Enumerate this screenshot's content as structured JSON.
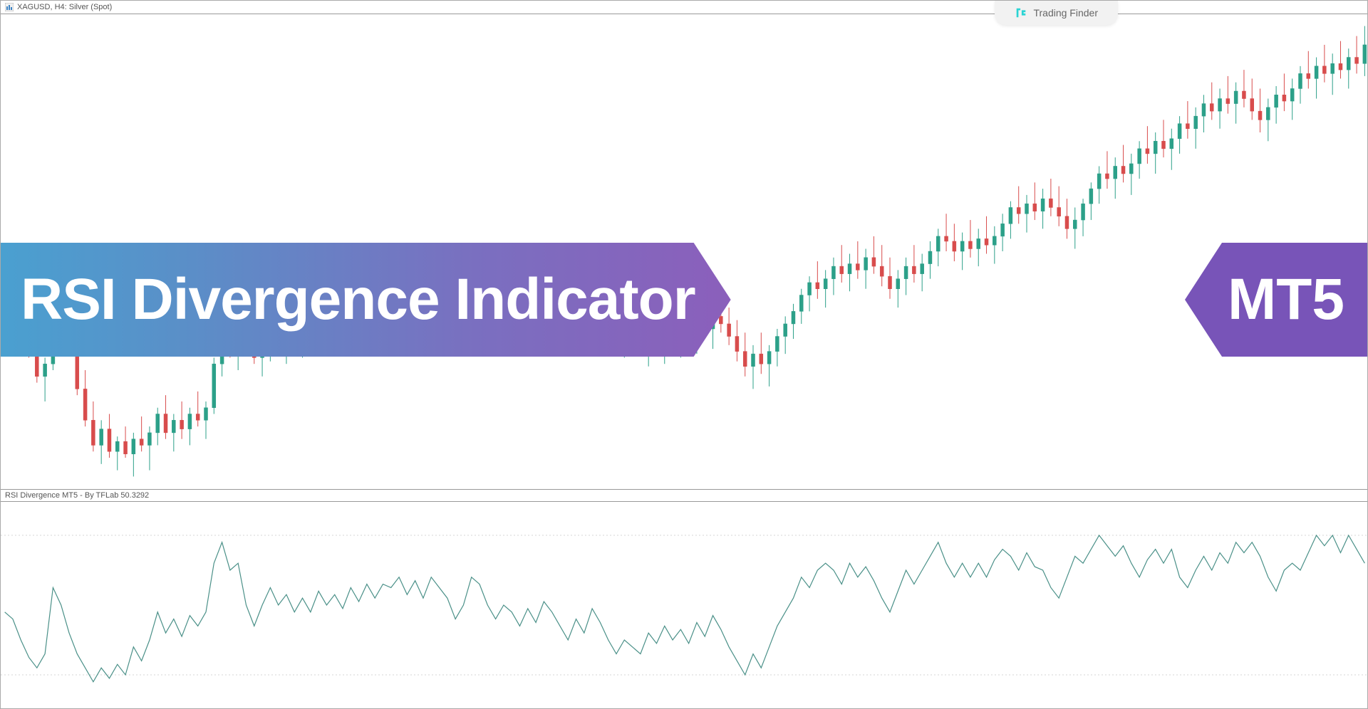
{
  "header": {
    "symbol_label": "XAGUSD, H4: Silver (Spot)",
    "icon_fill": "#3b82c4",
    "icon_stroke": "#2a5f8f"
  },
  "brand": {
    "name": "Trading Finder",
    "icon_color": "#2ad4d4",
    "bg": "#f2f2f2",
    "text_color": "#666666"
  },
  "title_banner": {
    "text": "RSI Divergence Indicator",
    "gradient_start": "#4aa0d0",
    "gradient_end": "#8b5fbb",
    "font_size": 82,
    "font_weight": 700,
    "text_color": "#ffffff"
  },
  "mt5_badge": {
    "text": "MT5",
    "bg": "#7854b8",
    "font_size": 82,
    "font_weight": 700,
    "text_color": "#ffffff"
  },
  "price_chart": {
    "type": "candlestick",
    "bull_color": "#2ca089",
    "bear_color": "#d84c4c",
    "wick_color_bull": "#2ca089",
    "wick_color_bear": "#d84c4c",
    "background": "#ffffff",
    "candle_width": 5,
    "ylim": [
      21.8,
      25.6
    ],
    "data": [
      {
        "o": 23.48,
        "h": 23.58,
        "l": 23.3,
        "c": 23.35
      },
      {
        "o": 23.35,
        "h": 23.52,
        "l": 23.28,
        "c": 23.45
      },
      {
        "o": 23.45,
        "h": 23.5,
        "l": 23.05,
        "c": 23.12
      },
      {
        "o": 23.12,
        "h": 23.2,
        "l": 22.85,
        "c": 22.9
      },
      {
        "o": 22.9,
        "h": 23.0,
        "l": 22.65,
        "c": 22.7
      },
      {
        "o": 22.7,
        "h": 22.85,
        "l": 22.5,
        "c": 22.8
      },
      {
        "o": 22.8,
        "h": 23.55,
        "l": 22.75,
        "c": 23.4
      },
      {
        "o": 23.4,
        "h": 23.6,
        "l": 23.2,
        "c": 23.25
      },
      {
        "o": 23.25,
        "h": 23.35,
        "l": 22.9,
        "c": 22.95
      },
      {
        "o": 22.95,
        "h": 23.05,
        "l": 22.55,
        "c": 22.6
      },
      {
        "o": 22.6,
        "h": 22.75,
        "l": 22.3,
        "c": 22.35
      },
      {
        "o": 22.35,
        "h": 22.5,
        "l": 22.1,
        "c": 22.15
      },
      {
        "o": 22.15,
        "h": 22.35,
        "l": 22.0,
        "c": 22.28
      },
      {
        "o": 22.28,
        "h": 22.4,
        "l": 22.05,
        "c": 22.1
      },
      {
        "o": 22.1,
        "h": 22.22,
        "l": 21.95,
        "c": 22.18
      },
      {
        "o": 22.18,
        "h": 22.3,
        "l": 22.05,
        "c": 22.08
      },
      {
        "o": 22.08,
        "h": 22.25,
        "l": 21.9,
        "c": 22.2
      },
      {
        "o": 22.2,
        "h": 22.38,
        "l": 22.1,
        "c": 22.15
      },
      {
        "o": 22.15,
        "h": 22.3,
        "l": 21.95,
        "c": 22.25
      },
      {
        "o": 22.25,
        "h": 22.45,
        "l": 22.15,
        "c": 22.4
      },
      {
        "o": 22.4,
        "h": 22.55,
        "l": 22.2,
        "c": 22.25
      },
      {
        "o": 22.25,
        "h": 22.4,
        "l": 22.1,
        "c": 22.35
      },
      {
        "o": 22.35,
        "h": 22.5,
        "l": 22.2,
        "c": 22.28
      },
      {
        "o": 22.28,
        "h": 22.45,
        "l": 22.15,
        "c": 22.4
      },
      {
        "o": 22.4,
        "h": 22.58,
        "l": 22.3,
        "c": 22.35
      },
      {
        "o": 22.35,
        "h": 22.5,
        "l": 22.2,
        "c": 22.45
      },
      {
        "o": 22.45,
        "h": 22.85,
        "l": 22.4,
        "c": 22.8
      },
      {
        "o": 22.8,
        "h": 23.05,
        "l": 22.7,
        "c": 23.0
      },
      {
        "o": 23.0,
        "h": 23.2,
        "l": 22.85,
        "c": 22.9
      },
      {
        "o": 22.9,
        "h": 23.1,
        "l": 22.75,
        "c": 23.05
      },
      {
        "o": 23.05,
        "h": 23.25,
        "l": 22.95,
        "c": 23.0
      },
      {
        "o": 23.0,
        "h": 23.15,
        "l": 22.8,
        "c": 22.85
      },
      {
        "o": 22.85,
        "h": 23.0,
        "l": 22.7,
        "c": 22.95
      },
      {
        "o": 22.95,
        "h": 23.12,
        "l": 22.82,
        "c": 23.08
      },
      {
        "o": 23.08,
        "h": 23.2,
        "l": 22.9,
        "c": 22.95
      },
      {
        "o": 22.95,
        "h": 23.1,
        "l": 22.8,
        "c": 23.05
      },
      {
        "o": 23.05,
        "h": 23.18,
        "l": 22.92,
        "c": 23.0
      },
      {
        "o": 23.0,
        "h": 23.15,
        "l": 22.85,
        "c": 23.1
      },
      {
        "o": 23.1,
        "h": 23.22,
        "l": 22.98,
        "c": 23.05
      },
      {
        "o": 23.05,
        "h": 23.18,
        "l": 22.9,
        "c": 23.12
      },
      {
        "o": 23.12,
        "h": 23.28,
        "l": 23.02,
        "c": 23.08
      },
      {
        "o": 23.08,
        "h": 23.2,
        "l": 22.95,
        "c": 23.15
      },
      {
        "o": 23.15,
        "h": 23.3,
        "l": 23.05,
        "c": 23.12
      },
      {
        "o": 23.12,
        "h": 23.25,
        "l": 23.0,
        "c": 23.2
      },
      {
        "o": 23.2,
        "h": 23.35,
        "l": 23.08,
        "c": 23.15
      },
      {
        "o": 23.15,
        "h": 23.3,
        "l": 23.02,
        "c": 23.25
      },
      {
        "o": 23.25,
        "h": 23.4,
        "l": 23.12,
        "c": 23.18
      },
      {
        "o": 23.18,
        "h": 23.35,
        "l": 23.05,
        "c": 23.3
      },
      {
        "o": 23.3,
        "h": 23.48,
        "l": 23.18,
        "c": 23.25
      },
      {
        "o": 23.25,
        "h": 23.4,
        "l": 23.1,
        "c": 23.35
      },
      {
        "o": 23.35,
        "h": 23.5,
        "l": 23.22,
        "c": 23.28
      },
      {
        "o": 23.28,
        "h": 23.42,
        "l": 23.15,
        "c": 23.38
      },
      {
        "o": 23.38,
        "h": 23.52,
        "l": 23.25,
        "c": 23.32
      },
      {
        "o": 23.32,
        "h": 23.48,
        "l": 23.18,
        "c": 23.42
      },
      {
        "o": 23.42,
        "h": 23.58,
        "l": 23.3,
        "c": 23.38
      },
      {
        "o": 23.38,
        "h": 23.52,
        "l": 23.22,
        "c": 23.28
      },
      {
        "o": 23.28,
        "h": 23.42,
        "l": 23.12,
        "c": 23.18
      },
      {
        "o": 23.18,
        "h": 23.32,
        "l": 23.05,
        "c": 23.25
      },
      {
        "o": 23.25,
        "h": 23.55,
        "l": 23.18,
        "c": 23.5
      },
      {
        "o": 23.5,
        "h": 23.65,
        "l": 23.38,
        "c": 23.45
      },
      {
        "o": 23.45,
        "h": 23.58,
        "l": 23.28,
        "c": 23.35
      },
      {
        "o": 23.35,
        "h": 23.48,
        "l": 23.2,
        "c": 23.25
      },
      {
        "o": 23.25,
        "h": 23.4,
        "l": 23.1,
        "c": 23.32
      },
      {
        "o": 23.32,
        "h": 23.48,
        "l": 23.2,
        "c": 23.28
      },
      {
        "o": 23.28,
        "h": 23.42,
        "l": 23.12,
        "c": 23.2
      },
      {
        "o": 23.2,
        "h": 23.35,
        "l": 23.05,
        "c": 23.28
      },
      {
        "o": 23.28,
        "h": 23.42,
        "l": 23.15,
        "c": 23.22
      },
      {
        "o": 23.22,
        "h": 23.38,
        "l": 23.08,
        "c": 23.3
      },
      {
        "o": 23.3,
        "h": 23.45,
        "l": 23.18,
        "c": 23.25
      },
      {
        "o": 23.25,
        "h": 23.4,
        "l": 23.1,
        "c": 23.18
      },
      {
        "o": 23.18,
        "h": 23.32,
        "l": 23.02,
        "c": 23.1
      },
      {
        "o": 23.1,
        "h": 23.25,
        "l": 22.95,
        "c": 23.18
      },
      {
        "o": 23.18,
        "h": 23.32,
        "l": 23.05,
        "c": 23.12
      },
      {
        "o": 23.12,
        "h": 23.28,
        "l": 22.98,
        "c": 23.2
      },
      {
        "o": 23.2,
        "h": 23.35,
        "l": 23.08,
        "c": 23.15
      },
      {
        "o": 23.15,
        "h": 23.3,
        "l": 23.0,
        "c": 23.08
      },
      {
        "o": 23.08,
        "h": 23.22,
        "l": 22.92,
        "c": 23.0
      },
      {
        "o": 23.0,
        "h": 23.15,
        "l": 22.85,
        "c": 23.1
      },
      {
        "o": 23.1,
        "h": 23.25,
        "l": 22.98,
        "c": 23.05
      },
      {
        "o": 23.05,
        "h": 23.18,
        "l": 22.88,
        "c": 22.95
      },
      {
        "o": 22.95,
        "h": 23.1,
        "l": 22.78,
        "c": 23.02
      },
      {
        "o": 23.02,
        "h": 23.18,
        "l": 22.88,
        "c": 22.95
      },
      {
        "o": 22.95,
        "h": 23.1,
        "l": 22.8,
        "c": 23.05
      },
      {
        "o": 23.05,
        "h": 23.2,
        "l": 22.92,
        "c": 23.0
      },
      {
        "o": 23.0,
        "h": 23.15,
        "l": 22.85,
        "c": 23.08
      },
      {
        "o": 23.08,
        "h": 23.22,
        "l": 22.95,
        "c": 23.02
      },
      {
        "o": 23.02,
        "h": 23.18,
        "l": 22.88,
        "c": 23.12
      },
      {
        "o": 23.12,
        "h": 23.28,
        "l": 23.0,
        "c": 23.08
      },
      {
        "o": 23.08,
        "h": 23.22,
        "l": 22.92,
        "c": 23.18
      },
      {
        "o": 23.18,
        "h": 23.32,
        "l": 23.05,
        "c": 23.12
      },
      {
        "o": 23.12,
        "h": 23.25,
        "l": 22.95,
        "c": 23.02
      },
      {
        "o": 23.02,
        "h": 23.15,
        "l": 22.82,
        "c": 22.9
      },
      {
        "o": 22.9,
        "h": 23.05,
        "l": 22.7,
        "c": 22.78
      },
      {
        "o": 22.78,
        "h": 22.95,
        "l": 22.6,
        "c": 22.88
      },
      {
        "o": 22.88,
        "h": 23.05,
        "l": 22.72,
        "c": 22.8
      },
      {
        "o": 22.8,
        "h": 22.95,
        "l": 22.62,
        "c": 22.9
      },
      {
        "o": 22.9,
        "h": 23.08,
        "l": 22.78,
        "c": 23.02
      },
      {
        "o": 23.02,
        "h": 23.18,
        "l": 22.88,
        "c": 23.12
      },
      {
        "o": 23.12,
        "h": 23.28,
        "l": 23.0,
        "c": 23.22
      },
      {
        "o": 23.22,
        "h": 23.4,
        "l": 23.12,
        "c": 23.35
      },
      {
        "o": 23.35,
        "h": 23.5,
        "l": 23.22,
        "c": 23.45
      },
      {
        "o": 23.45,
        "h": 23.62,
        "l": 23.32,
        "c": 23.4
      },
      {
        "o": 23.4,
        "h": 23.55,
        "l": 23.25,
        "c": 23.48
      },
      {
        "o": 23.48,
        "h": 23.65,
        "l": 23.35,
        "c": 23.58
      },
      {
        "o": 23.58,
        "h": 23.75,
        "l": 23.45,
        "c": 23.52
      },
      {
        "o": 23.52,
        "h": 23.68,
        "l": 23.38,
        "c": 23.6
      },
      {
        "o": 23.6,
        "h": 23.78,
        "l": 23.48,
        "c": 23.55
      },
      {
        "o": 23.55,
        "h": 23.72,
        "l": 23.4,
        "c": 23.65
      },
      {
        "o": 23.65,
        "h": 23.82,
        "l": 23.52,
        "c": 23.58
      },
      {
        "o": 23.58,
        "h": 23.75,
        "l": 23.42,
        "c": 23.5
      },
      {
        "o": 23.5,
        "h": 23.65,
        "l": 23.32,
        "c": 23.4
      },
      {
        "o": 23.4,
        "h": 23.55,
        "l": 23.25,
        "c": 23.48
      },
      {
        "o": 23.48,
        "h": 23.65,
        "l": 23.35,
        "c": 23.58
      },
      {
        "o": 23.58,
        "h": 23.75,
        "l": 23.45,
        "c": 23.52
      },
      {
        "o": 23.52,
        "h": 23.68,
        "l": 23.38,
        "c": 23.6
      },
      {
        "o": 23.6,
        "h": 23.78,
        "l": 23.48,
        "c": 23.7
      },
      {
        "o": 23.7,
        "h": 23.88,
        "l": 23.58,
        "c": 23.82
      },
      {
        "o": 23.82,
        "h": 24.0,
        "l": 23.7,
        "c": 23.78
      },
      {
        "o": 23.78,
        "h": 23.92,
        "l": 23.62,
        "c": 23.7
      },
      {
        "o": 23.7,
        "h": 23.85,
        "l": 23.55,
        "c": 23.78
      },
      {
        "o": 23.78,
        "h": 23.95,
        "l": 23.65,
        "c": 23.72
      },
      {
        "o": 23.72,
        "h": 23.88,
        "l": 23.58,
        "c": 23.8
      },
      {
        "o": 23.8,
        "h": 23.98,
        "l": 23.68,
        "c": 23.75
      },
      {
        "o": 23.75,
        "h": 23.9,
        "l": 23.6,
        "c": 23.82
      },
      {
        "o": 23.82,
        "h": 24.0,
        "l": 23.7,
        "c": 23.92
      },
      {
        "o": 23.92,
        "h": 24.1,
        "l": 23.8,
        "c": 24.05
      },
      {
        "o": 24.05,
        "h": 24.22,
        "l": 23.92,
        "c": 24.0
      },
      {
        "o": 24.0,
        "h": 24.15,
        "l": 23.85,
        "c": 24.08
      },
      {
        "o": 24.08,
        "h": 24.25,
        "l": 23.95,
        "c": 24.02
      },
      {
        "o": 24.02,
        "h": 24.2,
        "l": 23.88,
        "c": 24.12
      },
      {
        "o": 24.12,
        "h": 24.28,
        "l": 23.98,
        "c": 24.05
      },
      {
        "o": 24.05,
        "h": 24.22,
        "l": 23.9,
        "c": 23.98
      },
      {
        "o": 23.98,
        "h": 24.12,
        "l": 23.8,
        "c": 23.88
      },
      {
        "o": 23.88,
        "h": 24.05,
        "l": 23.72,
        "c": 23.95
      },
      {
        "o": 23.95,
        "h": 24.12,
        "l": 23.82,
        "c": 24.08
      },
      {
        "o": 24.08,
        "h": 24.25,
        "l": 23.95,
        "c": 24.2
      },
      {
        "o": 24.2,
        "h": 24.38,
        "l": 24.08,
        "c": 24.32
      },
      {
        "o": 24.32,
        "h": 24.5,
        "l": 24.2,
        "c": 24.28
      },
      {
        "o": 24.28,
        "h": 24.45,
        "l": 24.12,
        "c": 24.38
      },
      {
        "o": 24.38,
        "h": 24.55,
        "l": 24.25,
        "c": 24.32
      },
      {
        "o": 24.32,
        "h": 24.48,
        "l": 24.15,
        "c": 24.4
      },
      {
        "o": 24.4,
        "h": 24.58,
        "l": 24.28,
        "c": 24.52
      },
      {
        "o": 24.52,
        "h": 24.7,
        "l": 24.4,
        "c": 24.48
      },
      {
        "o": 24.48,
        "h": 24.65,
        "l": 24.32,
        "c": 24.58
      },
      {
        "o": 24.58,
        "h": 24.75,
        "l": 24.45,
        "c": 24.52
      },
      {
        "o": 24.52,
        "h": 24.68,
        "l": 24.35,
        "c": 24.6
      },
      {
        "o": 24.6,
        "h": 24.78,
        "l": 24.48,
        "c": 24.72
      },
      {
        "o": 24.72,
        "h": 24.9,
        "l": 24.6,
        "c": 24.68
      },
      {
        "o": 24.68,
        "h": 24.85,
        "l": 24.52,
        "c": 24.78
      },
      {
        "o": 24.78,
        "h": 24.95,
        "l": 24.65,
        "c": 24.88
      },
      {
        "o": 24.88,
        "h": 25.05,
        "l": 24.75,
        "c": 24.82
      },
      {
        "o": 24.82,
        "h": 25.0,
        "l": 24.68,
        "c": 24.92
      },
      {
        "o": 24.92,
        "h": 25.1,
        "l": 24.8,
        "c": 24.88
      },
      {
        "o": 24.88,
        "h": 25.05,
        "l": 24.72,
        "c": 24.98
      },
      {
        "o": 24.98,
        "h": 25.15,
        "l": 24.85,
        "c": 24.92
      },
      {
        "o": 24.92,
        "h": 25.08,
        "l": 24.75,
        "c": 24.82
      },
      {
        "o": 24.82,
        "h": 25.0,
        "l": 24.65,
        "c": 24.75
      },
      {
        "o": 24.75,
        "h": 24.92,
        "l": 24.58,
        "c": 24.85
      },
      {
        "o": 24.85,
        "h": 25.02,
        "l": 24.72,
        "c": 24.95
      },
      {
        "o": 24.95,
        "h": 25.12,
        "l": 24.82,
        "c": 24.9
      },
      {
        "o": 24.9,
        "h": 25.08,
        "l": 24.75,
        "c": 25.0
      },
      {
        "o": 25.0,
        "h": 25.18,
        "l": 24.88,
        "c": 25.12
      },
      {
        "o": 25.12,
        "h": 25.3,
        "l": 25.0,
        "c": 25.08
      },
      {
        "o": 25.08,
        "h": 25.25,
        "l": 24.92,
        "c": 25.18
      },
      {
        "o": 25.18,
        "h": 25.35,
        "l": 25.05,
        "c": 25.12
      },
      {
        "o": 25.12,
        "h": 25.28,
        "l": 24.95,
        "c": 25.2
      },
      {
        "o": 25.2,
        "h": 25.38,
        "l": 25.08,
        "c": 25.15
      },
      {
        "o": 25.15,
        "h": 25.32,
        "l": 25.0,
        "c": 25.25
      },
      {
        "o": 25.25,
        "h": 25.42,
        "l": 25.12,
        "c": 25.2
      },
      {
        "o": 25.2,
        "h": 25.5,
        "l": 25.1,
        "c": 25.35
      }
    ]
  },
  "rsi_panel": {
    "label": "RSI Divergence MT5 - By TFLab 50.3292",
    "type": "line",
    "line_color": "#4a9088",
    "line_width": 1.2,
    "background": "#ffffff",
    "grid_color": "#d5d5d5",
    "ylim": [
      20,
      80
    ],
    "grid_levels": [
      30,
      70
    ],
    "values": [
      48,
      46,
      40,
      35,
      32,
      36,
      55,
      50,
      42,
      36,
      32,
      28,
      32,
      29,
      33,
      30,
      38,
      34,
      40,
      48,
      42,
      46,
      41,
      47,
      44,
      48,
      62,
      68,
      60,
      62,
      50,
      44,
      50,
      55,
      50,
      53,
      48,
      52,
      48,
      54,
      50,
      53,
      49,
      55,
      51,
      56,
      52,
      56,
      55,
      58,
      53,
      57,
      52,
      58,
      55,
      52,
      46,
      50,
      58,
      56,
      50,
      46,
      50,
      48,
      44,
      49,
      45,
      51,
      48,
      44,
      40,
      46,
      42,
      49,
      45,
      40,
      36,
      40,
      38,
      36,
      42,
      39,
      44,
      40,
      43,
      39,
      45,
      41,
      47,
      43,
      38,
      34,
      30,
      36,
      32,
      38,
      44,
      48,
      52,
      58,
      55,
      60,
      62,
      60,
      56,
      62,
      58,
      61,
      57,
      52,
      48,
      54,
      60,
      56,
      60,
      64,
      68,
      62,
      58,
      62,
      58,
      62,
      58,
      63,
      66,
      64,
      60,
      65,
      61,
      60,
      55,
      52,
      58,
      64,
      62,
      66,
      70,
      67,
      64,
      67,
      62,
      58,
      63,
      66,
      62,
      66,
      58,
      55,
      60,
      64,
      60,
      65,
      62,
      68,
      65,
      68,
      64,
      58,
      54,
      60,
      62,
      60,
      65,
      70,
      67,
      70,
      65,
      70,
      66,
      62
    ]
  }
}
